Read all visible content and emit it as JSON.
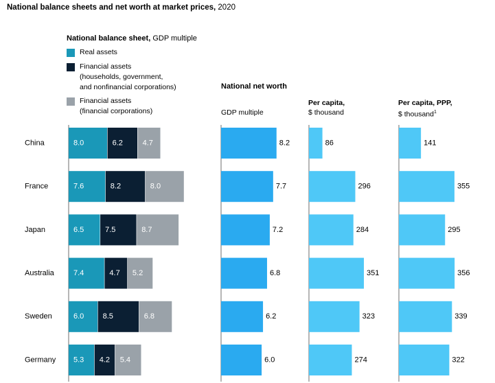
{
  "title": {
    "bold": "National balance sheets and net worth at market prices,",
    "rest": " 2020"
  },
  "legend": {
    "heading_bold": "National balance sheet,",
    "heading_rest": " GDP multiple",
    "items": [
      {
        "lines": [
          "Real assets"
        ],
        "color": "#1a98b8"
      },
      {
        "lines": [
          "Financial assets",
          "(households, government,",
          "and nonfinancial corporations)"
        ],
        "color": "#0b1f33"
      },
      {
        "lines": [
          "Financial assets",
          "(financial corporations)"
        ],
        "color": "#9aa2a9"
      }
    ]
  },
  "net_worth_heading": "National net worth",
  "columns": {
    "gdp": {
      "sub": "GDP multiple"
    },
    "per_capita": {
      "bold": "Per capita,",
      "sub": "$ thousand"
    },
    "per_capita_ppp": {
      "bold": "Per capita, PPP,",
      "sub": "$ thousand",
      "sup": "1"
    }
  },
  "colors": {
    "real": "#1a98b8",
    "fin_nonfin": "#0b1f33",
    "fin_fin": "#9aa2a9",
    "net_worth": "#2aaaf0",
    "per_capita": "#4fc8f7",
    "axis": "#6d6d6d"
  },
  "chart_data": {
    "type": "bar",
    "categories": [
      "China",
      "France",
      "Japan",
      "Australia",
      "Sweden",
      "Germany"
    ],
    "balance_sheet": {
      "stacked": true,
      "series": [
        {
          "name": "Real assets",
          "values": [
            8.0,
            7.6,
            6.5,
            7.4,
            6.0,
            5.3
          ]
        },
        {
          "name": "Financial assets (households, government, and nonfinancial corporations)",
          "values": [
            6.2,
            8.2,
            7.5,
            4.7,
            8.5,
            4.2
          ]
        },
        {
          "name": "Financial assets (financial corporations)",
          "values": [
            4.7,
            8.0,
            8.7,
            5.2,
            6.8,
            5.4
          ]
        }
      ]
    },
    "net_worth_gdp_multiple": [
      8.2,
      7.7,
      7.2,
      6.8,
      6.2,
      6.0
    ],
    "net_worth_per_capita": [
      86,
      296,
      284,
      351,
      323,
      274
    ],
    "net_worth_per_capita_ppp": [
      141,
      355,
      295,
      356,
      339,
      322
    ]
  }
}
